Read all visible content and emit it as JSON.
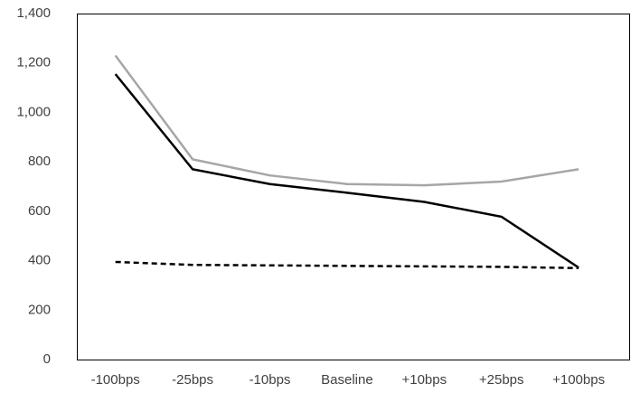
{
  "chart_data": {
    "type": "line",
    "categories": [
      "-100bps",
      "-25bps",
      "-10bps",
      "Baseline",
      "+10bps",
      "+25bps",
      "+100bps"
    ],
    "series": [
      {
        "color": "#a6a6a6",
        "line_style": "solid",
        "values": [
          1230,
          810,
          745,
          710,
          705,
          720,
          770
        ]
      },
      {
        "color": "#000000",
        "line_style": "solid",
        "values": [
          1155,
          770,
          710,
          675,
          638,
          578,
          372
        ]
      },
      {
        "color": "#000000",
        "line_style": "dashed",
        "values": [
          395,
          383,
          381,
          379,
          377,
          375,
          370
        ]
      }
    ],
    "ylim": [
      0,
      1400
    ],
    "yticks": [
      0,
      200,
      400,
      600,
      800,
      {
        "value": 1000,
        "label": "1,000"
      },
      {
        "value": 1200,
        "label": "1,200"
      },
      {
        "value": 1400,
        "label": "1,400"
      }
    ],
    "grid": false
  }
}
